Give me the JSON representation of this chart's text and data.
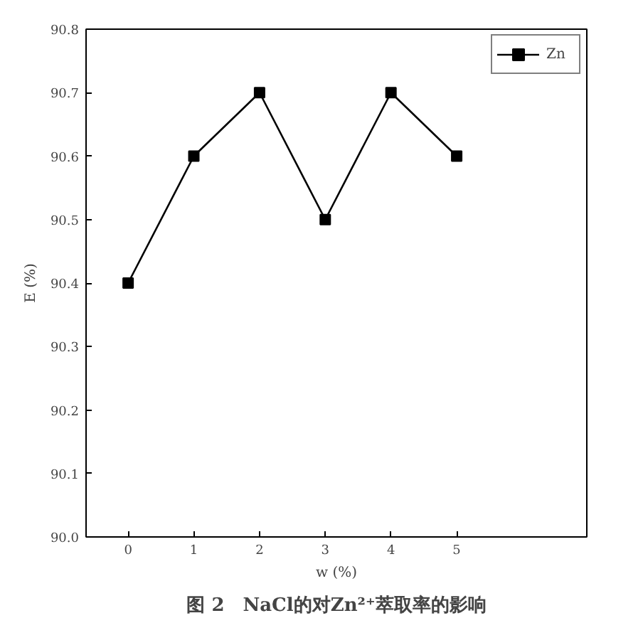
{
  "chart_data": {
    "type": "line",
    "title": "图 2　NaCl的对Zn²⁺萃取率的影响",
    "xlabel": "w (%)",
    "ylabel": "E (%)",
    "x": [
      0,
      1,
      2,
      3,
      4,
      5
    ],
    "series": [
      {
        "name": "Zn",
        "color": "#000000",
        "values": [
          90.4,
          90.6,
          90.7,
          90.5,
          90.7,
          90.6
        ]
      }
    ],
    "xlim": [
      -0.64,
      6.98
    ],
    "xticks": [
      0,
      1,
      2,
      3,
      4,
      5
    ],
    "ylim": [
      90.0,
      90.8
    ],
    "yticks": [
      {
        "value": 90.0,
        "label": "90.0"
      },
      {
        "value": 90.1,
        "label": "90.1"
      },
      {
        "value": 90.2,
        "label": "90.2"
      },
      {
        "value": 90.3,
        "label": "90.3"
      },
      {
        "value": 90.4,
        "label": "90.4"
      },
      {
        "value": 90.5,
        "label": "90.5"
      },
      {
        "value": 90.6,
        "label": "90.6"
      },
      {
        "value": 90.7,
        "label": "90.7"
      },
      {
        "value": 90.8,
        "label": "90.8"
      }
    ],
    "marker": "square",
    "line_style": "solid",
    "legend": "top right",
    "grid": false
  }
}
